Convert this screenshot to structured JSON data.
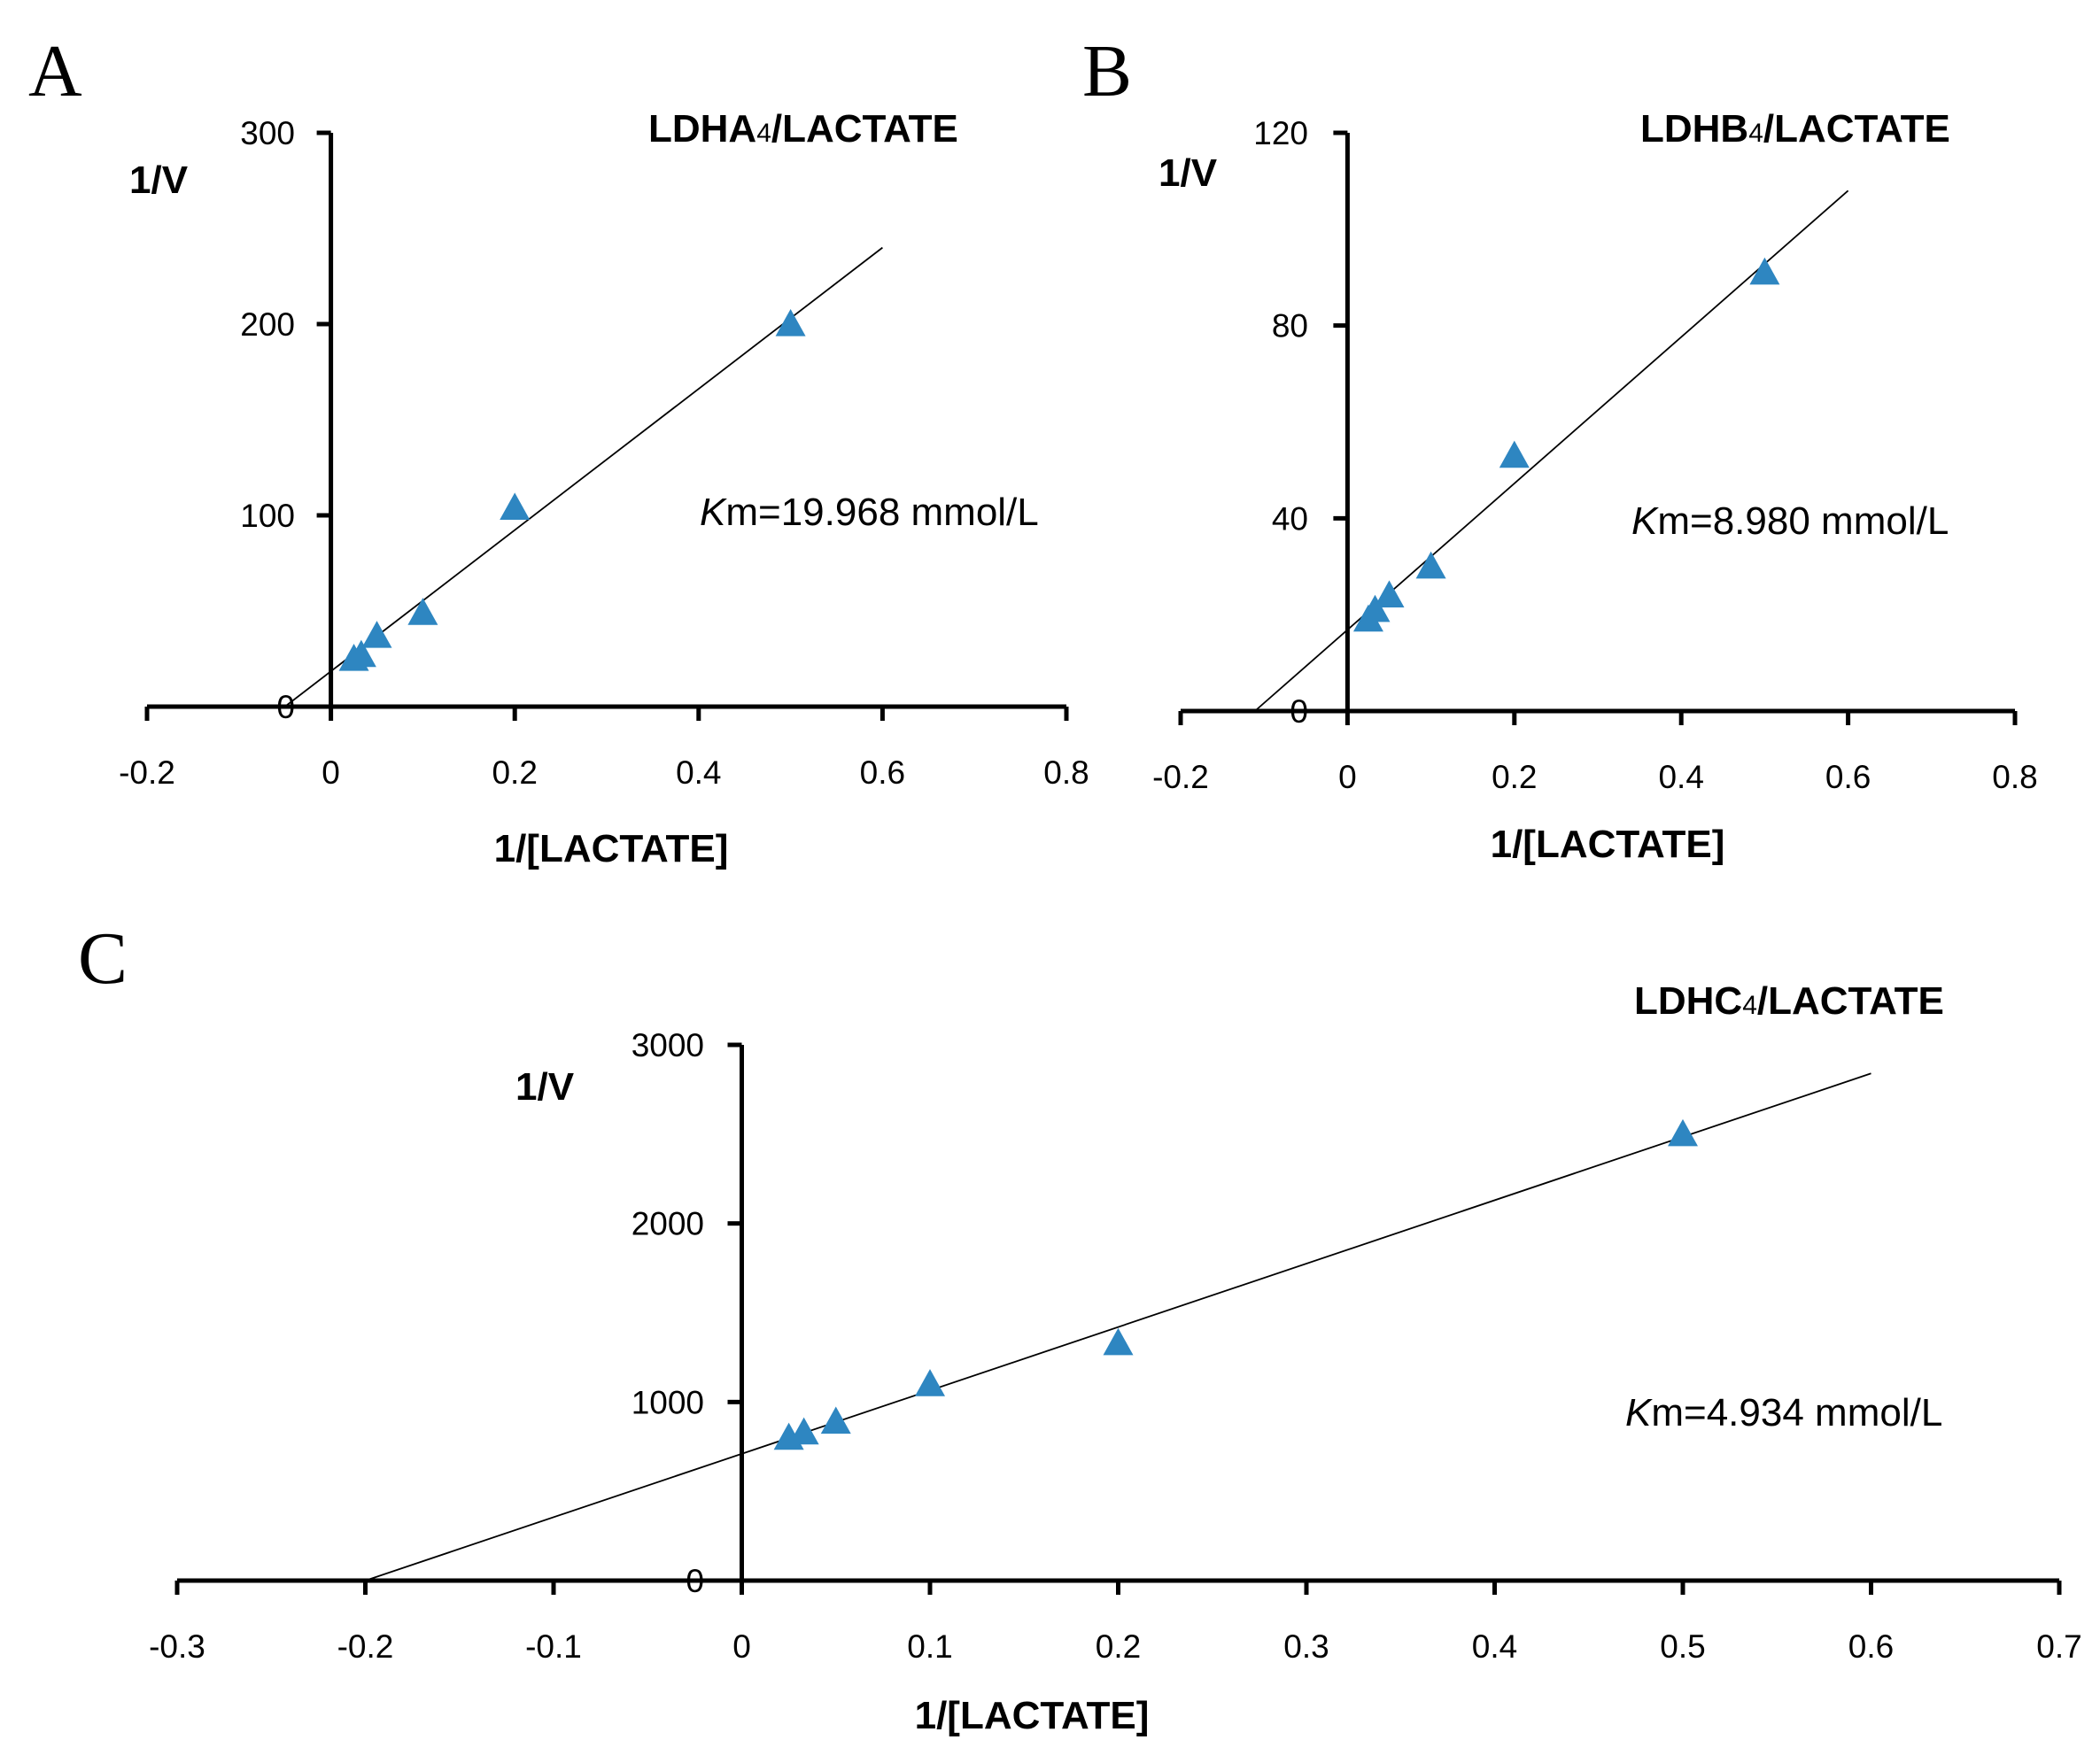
{
  "chart_data": [
    {
      "panel": "A",
      "type": "scatter",
      "title": "LDHA",
      "title_sub": "4",
      "title_suffix": "/LACTATE",
      "xlabel": "1/[LACTATE]",
      "ylabel": "1/V",
      "xlim": [
        -0.2,
        0.8
      ],
      "ylim": [
        0,
        300
      ],
      "x_ticks": [
        -0.2,
        0,
        0.2,
        0.4,
        0.6,
        0.8
      ],
      "x_tick_labels": [
        "-0.2",
        "0",
        "0.2",
        "0.4",
        "0.6",
        "0.8"
      ],
      "y_ticks": [
        0,
        100,
        200,
        300
      ],
      "y_tick_labels": [
        "0",
        "100",
        "200",
        "300"
      ],
      "km_prefix": "K",
      "km_value": "m=19.968 mmol/L",
      "marker_color": "#2E86C1",
      "points": {
        "x": [
          0.025,
          0.033,
          0.05,
          0.1,
          0.2,
          0.5
        ],
        "y": [
          25,
          27,
          37,
          49,
          104,
          200
        ]
      },
      "fit": {
        "x": [
          -0.05,
          0.6
        ],
        "y": [
          0,
          240
        ]
      }
    },
    {
      "panel": "B",
      "type": "scatter",
      "title": "LDHB",
      "title_sub": "4",
      "title_suffix": "/LACTATE",
      "xlabel": "1/[LACTATE]",
      "ylabel": "1/V",
      "xlim": [
        -0.2,
        0.8
      ],
      "ylim": [
        0,
        120
      ],
      "x_ticks": [
        -0.2,
        0,
        0.2,
        0.4,
        0.6,
        0.8
      ],
      "x_tick_labels": [
        "-0.2",
        "0",
        "0.2",
        "0.4",
        "0.6",
        "0.8"
      ],
      "y_ticks": [
        0,
        40,
        80,
        120
      ],
      "y_tick_labels": [
        "0",
        "40",
        "80",
        "120"
      ],
      "km_prefix": "K",
      "km_value": "m=8.980 mmol/L",
      "marker_color": "#2E86C1",
      "points": {
        "x": [
          0.025,
          0.033,
          0.05,
          0.1,
          0.2,
          0.5
        ],
        "y": [
          19,
          21,
          24,
          30,
          53,
          91
        ]
      },
      "fit": {
        "x": [
          -0.111,
          0.6
        ],
        "y": [
          0,
          108
        ]
      }
    },
    {
      "panel": "C",
      "type": "scatter",
      "title": "LDHC",
      "title_sub": "4",
      "title_suffix": "/LACTATE",
      "xlabel": "1/[LACTATE]",
      "ylabel": "1/V",
      "xlim": [
        -0.3,
        0.7
      ],
      "ylim": [
        0,
        3000
      ],
      "x_ticks": [
        -0.3,
        -0.2,
        -0.1,
        0,
        0.1,
        0.2,
        0.3,
        0.4,
        0.5,
        0.6,
        0.7
      ],
      "x_tick_labels": [
        "-0.3",
        "-0.2",
        "-0.1",
        "0",
        "0.1",
        "0.2",
        "0.3",
        "0.4",
        "0.5",
        "0.6",
        "0.7"
      ],
      "y_ticks": [
        0,
        1000,
        2000,
        3000
      ],
      "y_tick_labels": [
        "0",
        "1000",
        "2000",
        "3000"
      ],
      "km_prefix": "K",
      "km_value": "m=4.934 mmol/L",
      "marker_color": "#2E86C1",
      "points": {
        "x": [
          0.025,
          0.033,
          0.05,
          0.1,
          0.2,
          0.5
        ],
        "y": [
          800,
          830,
          890,
          1100,
          1330,
          2500
        ]
      },
      "fit": {
        "x": [
          -0.2,
          0.6
        ],
        "y": [
          0,
          2840
        ]
      }
    }
  ]
}
